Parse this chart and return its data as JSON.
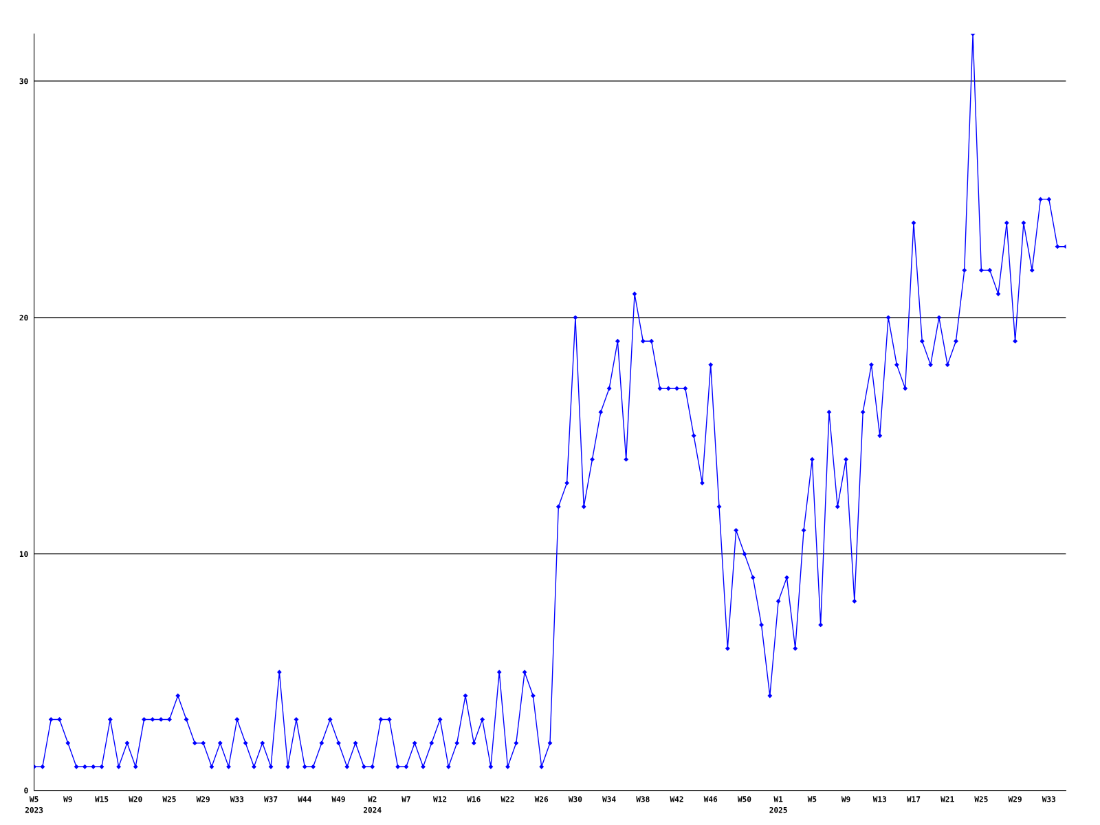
{
  "chart_data": {
    "type": "line",
    "categories": [
      "W5\n2023",
      null,
      null,
      null,
      "W9",
      null,
      null,
      null,
      "W15",
      null,
      null,
      null,
      "W20",
      null,
      null,
      null,
      "W25",
      null,
      null,
      null,
      "W29",
      null,
      null,
      null,
      "W33",
      null,
      null,
      null,
      "W37",
      null,
      null,
      null,
      "W44",
      null,
      null,
      null,
      "W49",
      null,
      null,
      null,
      "W2\n2024",
      null,
      null,
      null,
      "W7",
      null,
      null,
      null,
      "W12",
      null,
      null,
      null,
      "W16",
      null,
      null,
      null,
      "W22",
      null,
      null,
      null,
      "W26",
      null,
      null,
      null,
      "W30",
      null,
      null,
      null,
      "W34",
      null,
      null,
      null,
      "W38",
      null,
      null,
      null,
      "W42",
      null,
      null,
      null,
      "W46",
      null,
      null,
      null,
      "W50",
      null,
      null,
      null,
      "W1\n2025",
      null,
      null,
      null,
      "W5",
      null,
      null,
      null,
      "W9",
      null,
      null,
      null,
      "W13",
      null,
      null,
      null,
      "W17",
      null,
      null,
      null,
      "W21",
      null,
      null,
      null,
      "W25",
      null,
      null,
      null,
      "W29",
      null,
      null,
      null,
      "W33",
      null,
      null
    ],
    "series": [
      {
        "color": "#0000ff",
        "values": [
          1,
          1,
          3,
          3,
          2,
          1,
          1,
          1,
          1,
          3,
          1,
          2,
          1,
          3,
          3,
          3,
          3,
          4,
          3,
          2,
          2,
          1,
          2,
          1,
          3,
          2,
          1,
          2,
          1,
          5,
          1,
          3,
          1,
          1,
          2,
          3,
          2,
          1,
          2,
          1,
          1,
          3,
          3,
          1,
          1,
          2,
          1,
          2,
          3,
          1,
          2,
          4,
          2,
          3,
          1,
          5,
          1,
          2,
          5,
          4,
          1,
          2,
          12,
          13,
          20,
          12,
          14,
          16,
          17,
          19,
          14,
          21,
          19,
          19,
          17,
          17,
          17,
          17,
          15,
          13,
          18,
          12,
          6,
          11,
          10,
          9,
          7,
          4,
          8,
          9,
          6,
          11,
          14,
          7,
          16,
          12,
          14,
          8,
          16,
          18,
          15,
          20,
          18,
          17,
          24,
          19,
          18,
          20,
          18,
          19,
          22,
          32,
          22,
          22,
          21,
          24,
          19,
          24,
          22,
          25,
          25,
          23,
          23
        ]
      }
    ],
    "ylim": [
      0,
      32
    ],
    "yticks": [
      0,
      10,
      20,
      30
    ],
    "grid": "y",
    "marker": "diamond",
    "line_style": "solid"
  }
}
